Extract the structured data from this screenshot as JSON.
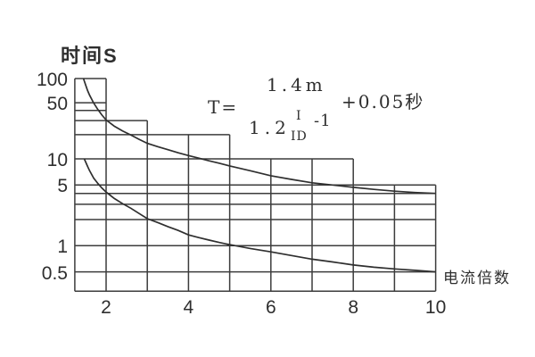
{
  "colors": {
    "background": "#ffffff",
    "grid_line": "#3c3c3c",
    "curve_line": "#2f2f2f",
    "text": "#2e2e2e"
  },
  "axes": {
    "y_axis_title": "时间S",
    "x_axis_title": "电流倍数"
  },
  "formula": {
    "lhs": "T=",
    "numerator": "1.4m",
    "denominator_base": "1.2",
    "exponent_numerator": "I",
    "exponent_denominator": "ID",
    "denominator_suffix": "-1",
    "suffix": "+0.05秒"
  },
  "chart_data": {
    "type": "line",
    "title": "",
    "xlabel": "电流倍数",
    "ylabel": "时间S",
    "x_scale": "linear",
    "y_scale": "log",
    "xlim": [
      1.24,
      10
    ],
    "ylim": [
      0.3,
      100
    ],
    "grid": true,
    "legend": "none",
    "x_ticks": [
      2,
      4,
      6,
      8,
      10
    ],
    "y_ticks": [
      100,
      50,
      10,
      5,
      1,
      0.5
    ],
    "gridlines_h": [
      {
        "v": 100,
        "x_end": 2
      },
      {
        "v": 50,
        "x_end": 2
      },
      {
        "v": 40,
        "x_end": 2
      },
      {
        "v": 30,
        "x_end": 3
      },
      {
        "v": 20,
        "x_end": 5
      },
      {
        "v": 10,
        "x_end": 8
      },
      {
        "v": 5,
        "x_end": 10
      },
      {
        "v": 4,
        "x_end": 10
      },
      {
        "v": 3,
        "x_end": 10
      },
      {
        "v": 2,
        "x_end": 10
      },
      {
        "v": 1,
        "x_end": 10
      },
      {
        "v": 0.5,
        "x_end": 10
      },
      {
        "v": 0.3,
        "x_end": 10
      }
    ],
    "gridlines_v": [
      {
        "x": 1.24,
        "v_top": 100
      },
      {
        "x": 2,
        "v_top": 100
      },
      {
        "x": 3,
        "v_top": 30
      },
      {
        "x": 4,
        "v_top": 20
      },
      {
        "x": 5,
        "v_top": 20
      },
      {
        "x": 6,
        "v_top": 10
      },
      {
        "x": 7,
        "v_top": 10
      },
      {
        "x": 8,
        "v_top": 10
      },
      {
        "x": 9,
        "v_top": 5
      },
      {
        "x": 10,
        "v_top": 5
      }
    ],
    "series": [
      {
        "name": "upper-inverse-time-curve",
        "points": [
          [
            1.45,
            100
          ],
          [
            1.5,
            84
          ],
          [
            1.55,
            71
          ],
          [
            1.6,
            62
          ],
          [
            1.7,
            49.5
          ],
          [
            1.8,
            41
          ],
          [
            1.9,
            35
          ],
          [
            2,
            30.5
          ],
          [
            2.2,
            25.5
          ],
          [
            2.4,
            22.3
          ],
          [
            2.6,
            19.8
          ],
          [
            2.8,
            17.5
          ],
          [
            3,
            15.6
          ],
          [
            3.25,
            14.2
          ],
          [
            3.5,
            13
          ],
          [
            3.75,
            11.9
          ],
          [
            4,
            11
          ],
          [
            4.25,
            10.2
          ],
          [
            4.5,
            9.5
          ],
          [
            4.75,
            8.9
          ],
          [
            5,
            8.3
          ],
          [
            5.5,
            7.3
          ],
          [
            6,
            6.4
          ],
          [
            6.5,
            5.8
          ],
          [
            7,
            5.3
          ],
          [
            7.5,
            5
          ],
          [
            8,
            4.7
          ],
          [
            8.5,
            4.45
          ],
          [
            9,
            4.25
          ],
          [
            9.5,
            4.1
          ],
          [
            10,
            4
          ]
        ]
      },
      {
        "name": "lower-inverse-time-curve",
        "points": [
          [
            1.47,
            10
          ],
          [
            1.5,
            9.3
          ],
          [
            1.55,
            8.2
          ],
          [
            1.6,
            7.3
          ],
          [
            1.7,
            6
          ],
          [
            1.8,
            5.2
          ],
          [
            1.9,
            4.6
          ],
          [
            2,
            4.15
          ],
          [
            2.2,
            3.5
          ],
          [
            2.4,
            3.05
          ],
          [
            2.6,
            2.7
          ],
          [
            2.8,
            2.35
          ],
          [
            3,
            2.05
          ],
          [
            3.25,
            1.85
          ],
          [
            3.5,
            1.66
          ],
          [
            3.75,
            1.5
          ],
          [
            4,
            1.33
          ],
          [
            4.25,
            1.24
          ],
          [
            4.5,
            1.16
          ],
          [
            4.75,
            1.09
          ],
          [
            5,
            1.03
          ],
          [
            5.5,
            0.93
          ],
          [
            6,
            0.85
          ],
          [
            6.5,
            0.77
          ],
          [
            7,
            0.7
          ],
          [
            7.5,
            0.65
          ],
          [
            8,
            0.6
          ],
          [
            8.5,
            0.565
          ],
          [
            9,
            0.54
          ],
          [
            9.5,
            0.52
          ],
          [
            10,
            0.5
          ]
        ]
      }
    ]
  }
}
